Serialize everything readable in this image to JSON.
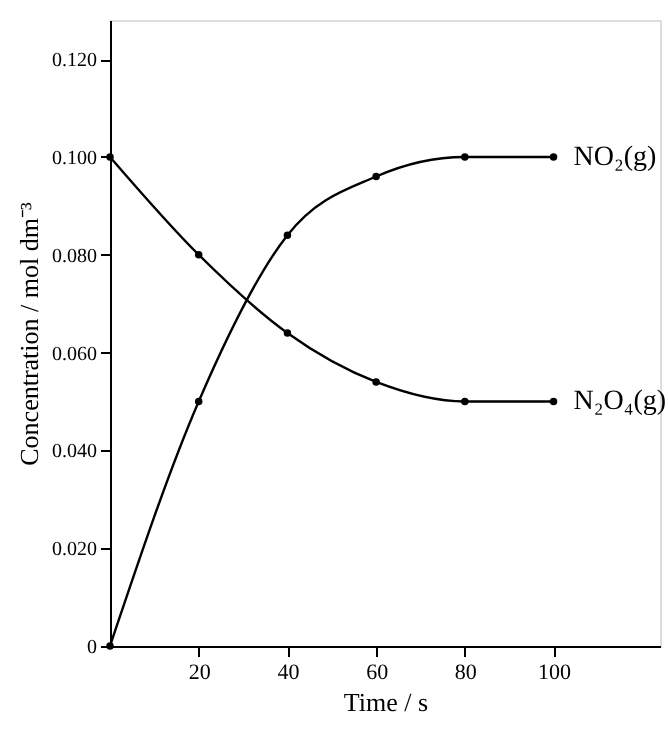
{
  "chart_data": {
    "type": "line",
    "xlabel": "Time / s",
    "ylabel": "Concentration / mol dm⁻³",
    "x": [
      0,
      20,
      40,
      60,
      80,
      100
    ],
    "series": [
      {
        "name": "NO₂(g)",
        "color": "#000000",
        "values": [
          0,
          0.05,
          0.084,
          0.096,
          0.1,
          0.1
        ]
      },
      {
        "name": "N₂O₄(g)",
        "color": "#000000",
        "values": [
          0.1,
          0.08,
          0.064,
          0.054,
          0.05,
          0.05
        ]
      }
    ],
    "xlim": [
      0,
      124
    ],
    "xticks": [
      20,
      40,
      60,
      80,
      100
    ],
    "ylim": [
      0,
      0.128
    ],
    "yticks": [
      {
        "value": 0,
        "label": "0"
      },
      {
        "value": 0.02,
        "label": "0.020"
      },
      {
        "value": 0.04,
        "label": "0.040"
      },
      {
        "value": 0.06,
        "label": "0.060"
      },
      {
        "value": 0.08,
        "label": "0.080"
      },
      {
        "value": 0.1,
        "label": "0.100"
      },
      {
        "value": 0.12,
        "label": "0.120"
      }
    ],
    "marker": "circle",
    "line_style": "solid",
    "legend": false,
    "grid": false
  }
}
